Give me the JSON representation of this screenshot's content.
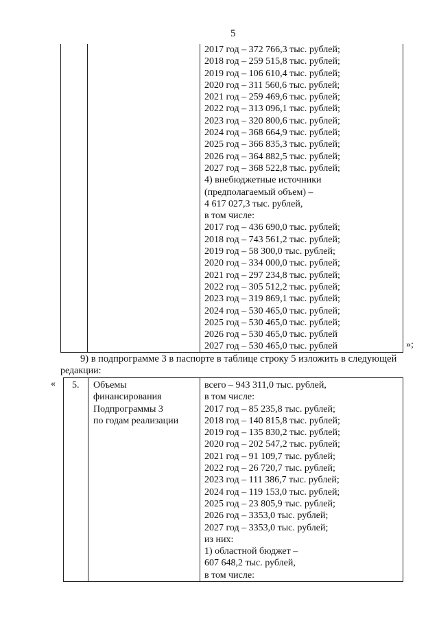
{
  "page_number": "5",
  "table1": {
    "funding_lines": [
      "2017 год – 372 766,3 тыс. рублей;",
      "2018 год – 259 515,8 тыс. рублей;",
      "2019 год – 106 610,4 тыс. рублей;",
      "2020 год – 311 560,6 тыс. рублей;",
      "2021 год – 259 469,6 тыс. рублей;",
      "2022 год – 313 096,1 тыс. рублей;",
      "2023 год – 320 800,6 тыс. рублей;",
      "2024 год – 368 664,9 тыс. рублей;",
      "2025 год – 366 835,3 тыс. рублей;",
      "2026 год – 364 882,5 тыс. рублей;",
      "2027 год – 368 522,8 тыс. рублей;",
      "4) внебюджетные источники",
      "(предполагаемый объем) –",
      "4 617 027,3 тыс. рублей,",
      "в том числе:",
      "2017 год – 436 690,0 тыс. рублей;",
      "2018 год – 743 561,2 тыс. рублей;",
      "2019 год – 58 300,0 тыс. рублей;",
      "2020 год – 334 000,0 тыс. рублей;",
      "2021 год – 297 234,8 тыс. рублей;",
      "2022 год – 305 512,2 тыс. рублей;",
      "2023 год – 319 869,1 тыс. рублей;",
      "2024 год – 530 465,0 тыс. рублей;",
      "2025 год – 530 465,0 тыс. рублей;",
      "2026 год – 530 465,0 тыс. рублей",
      "2027 год – 530 465,0 тыс. рублей"
    ],
    "closing_quote": "»;"
  },
  "paragraph": {
    "line1": "9) в подпрограмме 3 в паспорте в таблице строку 5 изложить в следующей",
    "line2": "редакции:"
  },
  "table2": {
    "opening_quote": "«",
    "row_number": "5.",
    "label_lines": [
      "Объемы",
      "финансирования",
      "Подпрограммы 3",
      "по годам реализации"
    ],
    "funding_lines": [
      "всего – 943 311,0 тыс. рублей,",
      "в том числе:",
      "2017 год – 85 235,8 тыс. рублей;",
      "2018 год – 140 815,8 тыс. рублей;",
      "2019 год – 135 830,2 тыс. рублей;",
      "2020 год – 202 547,2 тыс. рублей;",
      "2021 год – 91 109,7 тыс. рублей;",
      "2022 год – 26 720,7 тыс. рублей;",
      "2023 год – 111 386,7 тыс. рублей;",
      "2024 год – 119 153,0 тыс. рублей;",
      "2025 год – 23 805,9 тыс. рублей;",
      "2026 год – 3353,0 тыс. рублей;",
      "2027 год – 3353,0 тыс. рублей;",
      "из них:",
      "1) областной бюджет –",
      "607 648,2 тыс. рублей,",
      "в том числе:"
    ]
  }
}
